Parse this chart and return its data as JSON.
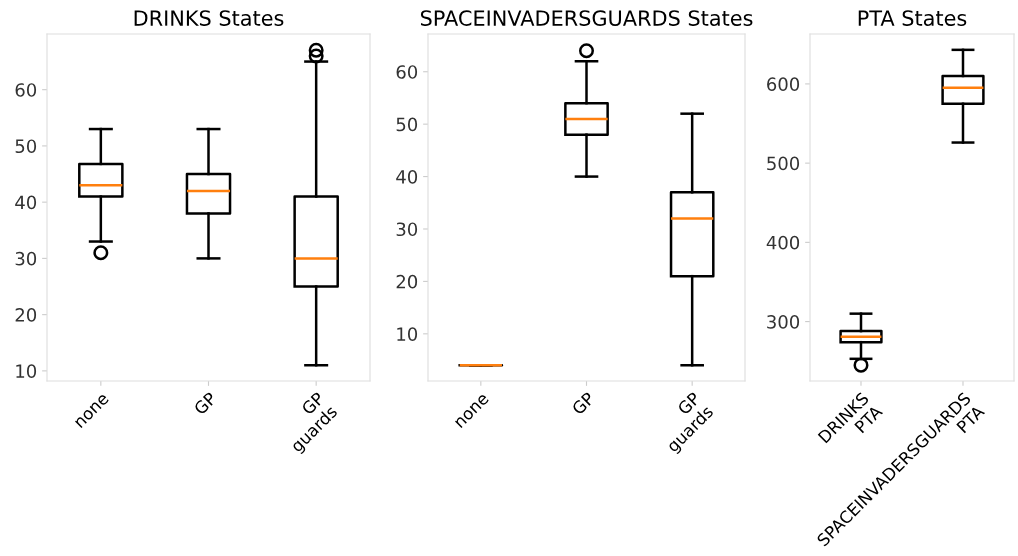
{
  "chart_data": [
    {
      "type": "box",
      "title": "DRINKS States",
      "categories": [
        "none",
        "GP",
        "GP\nguards"
      ],
      "ylim": [
        8.2,
        69.9
      ],
      "yticks": [
        10,
        20,
        30,
        40,
        50,
        60
      ],
      "grid": false,
      "boxes": [
        {
          "low": 33,
          "q1": 41,
          "median": 43,
          "q3": 46.8,
          "high": 53,
          "outliers": [
            31
          ]
        },
        {
          "low": 30,
          "q1": 38,
          "median": 42,
          "q3": 45,
          "high": 53
        },
        {
          "low": 11,
          "q1": 25,
          "median": 30,
          "q3": 41,
          "high": 65,
          "outliers": [
            66,
            67
          ]
        }
      ]
    },
    {
      "type": "box",
      "title": "SPACEINVADERSGUARDS States",
      "categories": [
        "none",
        "GP",
        "GP\nguards"
      ],
      "ylim": [
        1.0,
        67.2
      ],
      "yticks": [
        10,
        20,
        30,
        40,
        50,
        60
      ],
      "grid": false,
      "boxes": [
        {
          "low": 4,
          "q1": 4,
          "median": 4,
          "q3": 4,
          "high": 4
        },
        {
          "low": 40,
          "q1": 48,
          "median": 51,
          "q3": 54,
          "high": 62,
          "outliers": [
            64
          ]
        },
        {
          "low": 4,
          "q1": 21,
          "median": 32,
          "q3": 37,
          "high": 52
        }
      ]
    },
    {
      "type": "box",
      "title": "PTA States",
      "categories": [
        "DRINKS\nPTA",
        "SPACEINVADERSGUARDS\nPTA"
      ],
      "ylim": [
        225,
        663
      ],
      "yticks": [
        300,
        400,
        500,
        600
      ],
      "grid": false,
      "boxes": [
        {
          "low": 253,
          "q1": 274,
          "median": 281,
          "q3": 288,
          "high": 310,
          "outliers": [
            245
          ]
        },
        {
          "low": 526,
          "q1": 575,
          "median": 595,
          "q3": 610,
          "high": 643
        }
      ]
    }
  ]
}
